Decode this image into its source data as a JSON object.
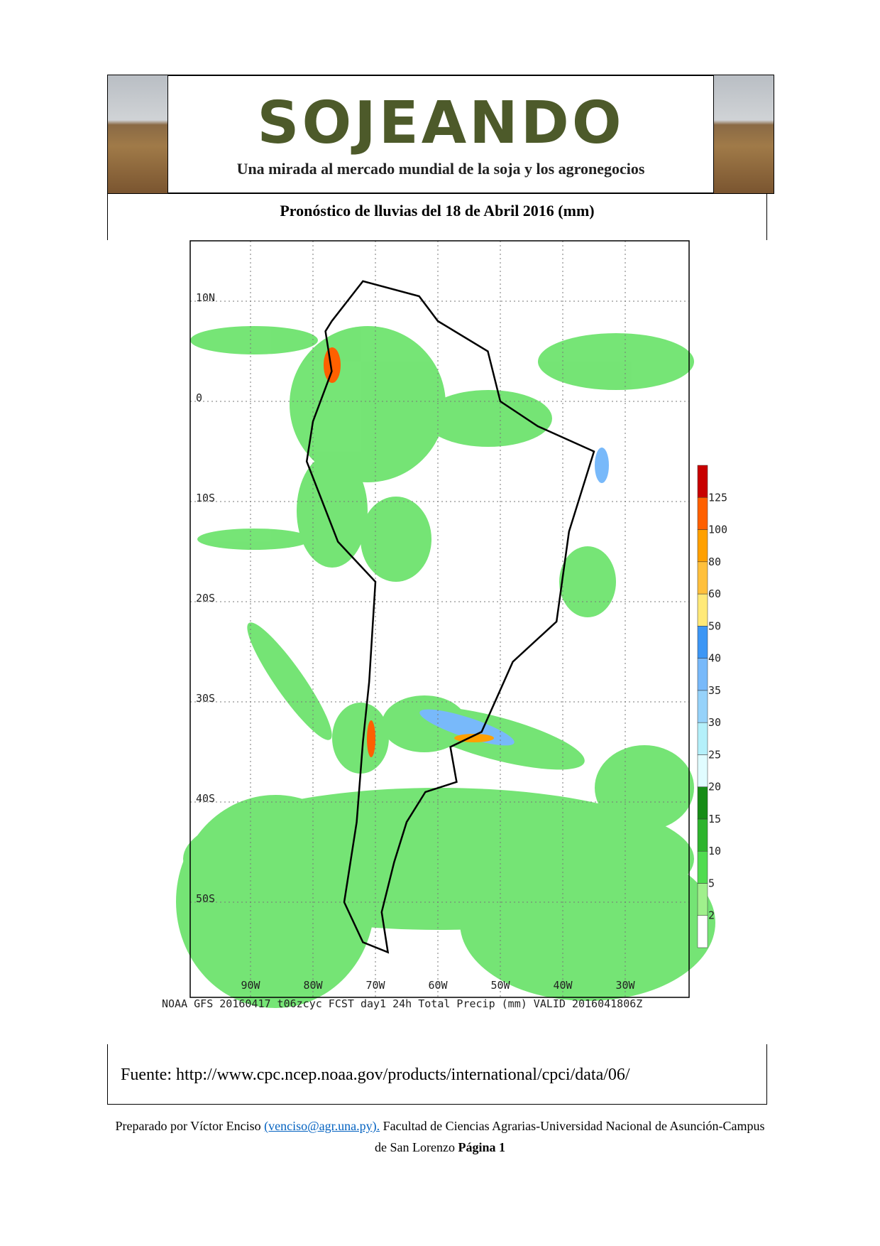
{
  "header": {
    "title": "SOJEANDO",
    "subtitle": "Una mirada al mercado mundial de la soja y los agronegocios"
  },
  "map_title": "Pronóstico de lluvias del 18 de Abril 2016 (mm)",
  "map": {
    "lat_labels": [
      "10N",
      "0",
      "10S",
      "20S",
      "30S",
      "40S",
      "50S"
    ],
    "lon_labels": [
      "90W",
      "80W",
      "70W",
      "60W",
      "50W",
      "40W",
      "30W"
    ],
    "caption": "NOAA GFS 20160417 t06zcyc FCST day1 24h Total Precip (mm)   VALID 2016041806Z",
    "colorbar": {
      "labels": [
        "2",
        "5",
        "10",
        "15",
        "20",
        "25",
        "30",
        "35",
        "40",
        "50",
        "60",
        "80",
        "100",
        "125"
      ],
      "colors": [
        "#ffffff",
        "#a0f08c",
        "#50dc50",
        "#2db42d",
        "#168c16",
        "#e0fcff",
        "#b4f0fa",
        "#96d2fa",
        "#78b9fa",
        "#3c96f5",
        "#ffe978",
        "#ffc03c",
        "#ffa000",
        "#ff6000",
        "#c80000"
      ]
    }
  },
  "source": "Fuente: http://www.cpc.ncep.noaa.gov/products/international/cpci/data/06/",
  "footer": {
    "prepared": "Preparado por Víctor Enciso",
    "email": "(venciso@agr.una.py).",
    "institution": "Facultad de Ciencias Agrarias-Universidad Nacional de Asunción-Campus de San Lorenzo",
    "page": "Página 1"
  }
}
